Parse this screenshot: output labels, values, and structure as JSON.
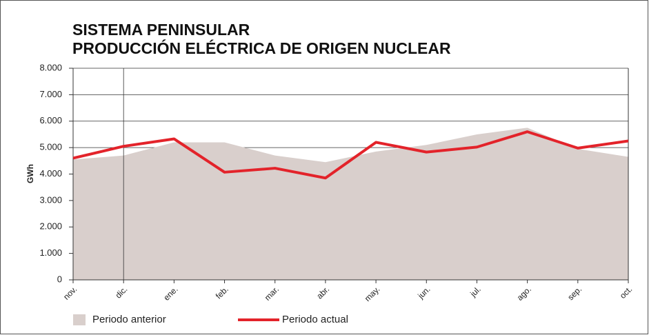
{
  "chart_data": {
    "type": "area-line",
    "title": [
      "SISTEMA PENINSULAR",
      "PRODUCCIÓN ELÉCTRICA DE ORIGEN NUCLEAR"
    ],
    "y_label": "GWh",
    "categories": [
      "nov.",
      "dic.",
      "ene.",
      "feb.",
      "mar.",
      "abr.",
      "may.",
      "jun.",
      "jul.",
      "ago.",
      "sep.",
      "oct."
    ],
    "series": [
      {
        "name": "Periodo anterior",
        "type": "area",
        "color": "#d9cfcc",
        "values": [
          4550,
          4700,
          5200,
          5200,
          4700,
          4450,
          4850,
          5100,
          5500,
          5750,
          4950,
          4650
        ]
      },
      {
        "name": "Periodo actual",
        "type": "line",
        "color": "#e3232a",
        "values": [
          4600,
          5050,
          5330,
          4070,
          4220,
          3850,
          5200,
          4830,
          5020,
          5600,
          4980,
          5250
        ]
      }
    ],
    "ylim": [
      0,
      8000
    ],
    "yticks": [
      0,
      {
        "value": 1000,
        "label": "1.000"
      },
      {
        "value": 2000,
        "label": "2.000"
      },
      {
        "value": 3000,
        "label": "3.000"
      },
      {
        "value": 4000,
        "label": "4.000"
      },
      {
        "value": 5000,
        "label": "5.000"
      },
      {
        "value": 6000,
        "label": "6.000"
      },
      {
        "value": 7000,
        "label": "7.000"
      },
      {
        "value": 8000,
        "label": "8.000"
      }
    ],
    "grid": true
  }
}
